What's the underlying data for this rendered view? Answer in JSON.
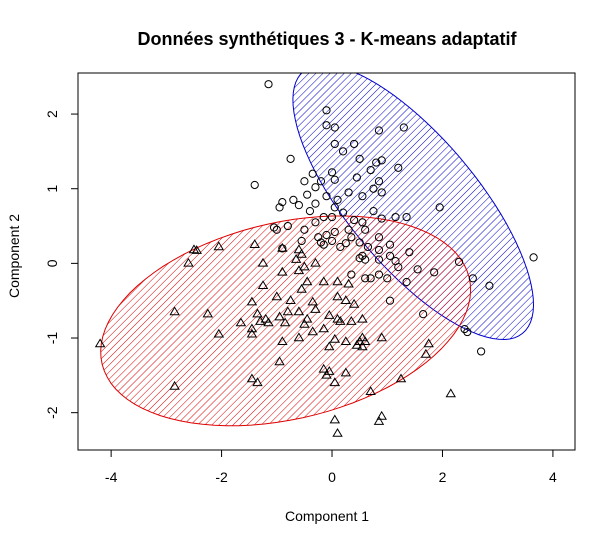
{
  "chart_data": {
    "type": "scatter",
    "title": "Données synthétiques 3 - K-means adaptatif",
    "xlabel": "Component 1",
    "ylabel": "Component 2",
    "xlim": [
      -4.6,
      4.4
    ],
    "ylim": [
      -2.5,
      2.55
    ],
    "xticks": [
      "-4",
      "-2",
      "0",
      "2",
      "4"
    ],
    "xtick_values": [
      -4,
      -2,
      0,
      2,
      4
    ],
    "yticks": [
      "-2",
      "-1",
      "0",
      "1",
      "2"
    ],
    "ytick_values": [
      -2,
      -1,
      0,
      1,
      2
    ],
    "grid": false,
    "colors": {
      "blue": "#0000cc",
      "red": "#dd0000",
      "points": "#000000"
    },
    "ellipses": [
      {
        "color": "#0000cc",
        "center": [
          1.47,
          0.82
        ],
        "semi_major": 2.67,
        "semi_minor": 1.0,
        "angle_deg": -38.6,
        "hatch": "diagonal"
      },
      {
        "color": "#dd0000",
        "center": [
          -0.84,
          -0.77
        ],
        "semi_major": 3.38,
        "semi_minor": 1.33,
        "angle_deg": 8.4,
        "hatch": "diagonal"
      }
    ],
    "series": [
      {
        "marker": "circle",
        "points": [
          [
            -1.15,
            2.4
          ],
          [
            -0.1,
            2.05
          ],
          [
            -0.1,
            1.85
          ],
          [
            0.05,
            1.82
          ],
          [
            1.3,
            1.82
          ],
          [
            0.85,
            1.78
          ],
          [
            0.4,
            1.6
          ],
          [
            0.05,
            1.6
          ],
          [
            0.2,
            1.5
          ],
          [
            0.8,
            1.35
          ],
          [
            0.5,
            1.4
          ],
          [
            0.9,
            1.38
          ],
          [
            -0.75,
            1.4
          ],
          [
            1.2,
            1.28
          ],
          [
            0.7,
            1.25
          ],
          [
            0.0,
            1.22
          ],
          [
            -0.35,
            1.2
          ],
          [
            0.05,
            1.12
          ],
          [
            -0.2,
            1.1
          ],
          [
            0.45,
            1.15
          ],
          [
            0.85,
            1.1
          ],
          [
            0.75,
            1.0
          ],
          [
            -0.5,
            1.1
          ],
          [
            -0.3,
            1.02
          ],
          [
            -1.4,
            1.05
          ],
          [
            0.9,
            0.95
          ],
          [
            0.3,
            0.95
          ],
          [
            -0.1,
            0.9
          ],
          [
            -0.45,
            0.92
          ],
          [
            0.1,
            0.85
          ],
          [
            0.55,
            0.9
          ],
          [
            -0.7,
            0.85
          ],
          [
            -0.6,
            0.78
          ],
          [
            -0.9,
            0.82
          ],
          [
            -0.95,
            0.75
          ],
          [
            -0.3,
            0.8
          ],
          [
            0.05,
            0.75
          ],
          [
            1.95,
            0.75
          ],
          [
            -0.4,
            0.7
          ],
          [
            0.0,
            0.62
          ],
          [
            0.2,
            0.68
          ],
          [
            -0.15,
            0.62
          ],
          [
            0.75,
            0.7
          ],
          [
            -0.3,
            0.55
          ],
          [
            1.15,
            0.62
          ],
          [
            0.9,
            0.6
          ],
          [
            0.4,
            0.58
          ],
          [
            0.55,
            0.55
          ],
          [
            1.35,
            0.62
          ],
          [
            -0.8,
            0.5
          ],
          [
            -0.5,
            0.45
          ],
          [
            -1.05,
            0.48
          ],
          [
            -1.0,
            0.45
          ],
          [
            0.3,
            0.45
          ],
          [
            0.6,
            0.45
          ],
          [
            0.05,
            0.42
          ],
          [
            0.35,
            0.35
          ],
          [
            0.85,
            0.35
          ],
          [
            -0.1,
            0.38
          ],
          [
            0.0,
            0.3
          ],
          [
            -0.2,
            0.28
          ],
          [
            -0.25,
            0.35
          ],
          [
            -0.55,
            0.3
          ],
          [
            0.5,
            0.28
          ],
          [
            0.25,
            0.27
          ],
          [
            1.05,
            0.25
          ],
          [
            0.15,
            0.22
          ],
          [
            -0.15,
            0.25
          ],
          [
            0.65,
            0.22
          ],
          [
            -0.9,
            0.2
          ],
          [
            0.85,
            0.18
          ],
          [
            1.4,
            0.15
          ],
          [
            1.05,
            0.1
          ],
          [
            0.55,
            0.1
          ],
          [
            0.6,
            0.05
          ],
          [
            0.5,
            0.07
          ],
          [
            0.85,
            0.05
          ],
          [
            1.15,
            0.03
          ],
          [
            2.3,
            0.02
          ],
          [
            3.65,
            0.08
          ],
          [
            1.2,
            -0.05
          ],
          [
            1.55,
            -0.08
          ],
          [
            1.85,
            -0.12
          ],
          [
            0.35,
            -0.15
          ],
          [
            0.7,
            -0.2
          ],
          [
            0.85,
            -0.15
          ],
          [
            0.6,
            -0.2
          ],
          [
            1.0,
            -0.2
          ],
          [
            2.55,
            -0.2
          ],
          [
            1.35,
            -0.25
          ],
          [
            2.85,
            -0.3
          ],
          [
            1.05,
            -0.5
          ],
          [
            1.65,
            -0.68
          ],
          [
            2.4,
            -0.88
          ],
          [
            2.45,
            -0.92
          ],
          [
            2.7,
            -1.18
          ]
        ]
      },
      {
        "marker": "triangle",
        "points": [
          [
            -2.5,
            0.18
          ],
          [
            -2.45,
            0.17
          ],
          [
            -2.05,
            0.22
          ],
          [
            -1.4,
            0.25
          ],
          [
            -0.9,
            0.2
          ],
          [
            -0.6,
            0.18
          ],
          [
            -0.55,
            0.12
          ],
          [
            -0.65,
            0.05
          ],
          [
            -2.6,
            0.0
          ],
          [
            -1.25,
            0.0
          ],
          [
            -0.3,
            0.0
          ],
          [
            -0.5,
            -0.05
          ],
          [
            -0.6,
            -0.1
          ],
          [
            -0.9,
            -0.12
          ],
          [
            -0.45,
            -0.25
          ],
          [
            -1.25,
            -0.3
          ],
          [
            -0.15,
            -0.25
          ],
          [
            0.1,
            -0.25
          ],
          [
            0.3,
            -0.28
          ],
          [
            -0.55,
            -0.35
          ],
          [
            -1.0,
            -0.45
          ],
          [
            -0.75,
            -0.5
          ],
          [
            -0.35,
            -0.52
          ],
          [
            0.1,
            -0.45
          ],
          [
            0.25,
            -0.5
          ],
          [
            0.4,
            -0.55
          ],
          [
            -1.45,
            -0.52
          ],
          [
            -2.85,
            -0.65
          ],
          [
            -2.25,
            -0.68
          ],
          [
            -1.35,
            -0.68
          ],
          [
            -0.3,
            -0.62
          ],
          [
            -0.8,
            -0.65
          ],
          [
            -0.6,
            -0.65
          ],
          [
            -0.45,
            -0.75
          ],
          [
            -0.5,
            -0.82
          ],
          [
            -0.05,
            -0.7
          ],
          [
            0.1,
            -0.75
          ],
          [
            0.15,
            -0.78
          ],
          [
            0.35,
            -0.78
          ],
          [
            0.55,
            -0.75
          ],
          [
            -1.2,
            -0.75
          ],
          [
            -1.15,
            -0.8
          ],
          [
            -1.3,
            -0.78
          ],
          [
            -1.65,
            -0.8
          ],
          [
            -0.85,
            -0.8
          ],
          [
            -0.95,
            -0.72
          ],
          [
            -0.35,
            -0.92
          ],
          [
            -0.15,
            -0.88
          ],
          [
            -2.05,
            -0.95
          ],
          [
            -1.45,
            -0.88
          ],
          [
            -1.45,
            -0.95
          ],
          [
            -0.6,
            -1.0
          ],
          [
            -0.9,
            -1.05
          ],
          [
            0.05,
            -1.02
          ],
          [
            0.25,
            -1.05
          ],
          [
            -0.05,
            -1.12
          ],
          [
            0.55,
            -1.0
          ],
          [
            0.5,
            -1.05
          ],
          [
            0.6,
            -1.05
          ],
          [
            0.9,
            -1.0
          ],
          [
            0.55,
            -1.12
          ],
          [
            0.45,
            -1.1
          ],
          [
            -4.2,
            -1.08
          ],
          [
            1.75,
            -1.08
          ],
          [
            1.7,
            -1.22
          ],
          [
            -0.95,
            -1.32
          ],
          [
            -0.15,
            -1.42
          ],
          [
            -0.05,
            -1.45
          ],
          [
            0.25,
            -1.47
          ],
          [
            -0.1,
            -1.5
          ],
          [
            0.05,
            -1.6
          ],
          [
            -1.45,
            -1.55
          ],
          [
            -1.35,
            -1.6
          ],
          [
            1.25,
            -1.55
          ],
          [
            -2.85,
            -1.65
          ],
          [
            0.7,
            -1.72
          ],
          [
            2.15,
            -1.75
          ],
          [
            0.05,
            -2.1
          ],
          [
            0.9,
            -2.05
          ],
          [
            0.85,
            -2.12
          ],
          [
            0.1,
            -2.28
          ]
        ]
      }
    ]
  }
}
